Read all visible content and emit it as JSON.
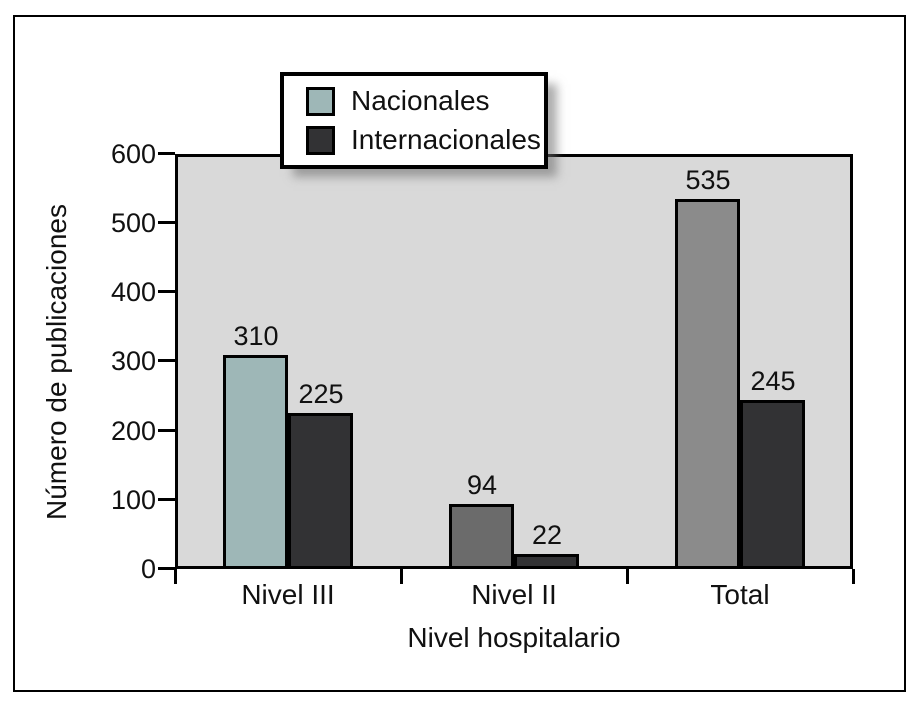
{
  "figure": {
    "background": "#ffffff",
    "frame_color": "#000000"
  },
  "chart_data": {
    "type": "bar",
    "title": "",
    "xlabel": "Nivel hospitalario",
    "ylabel": "Número de publicaciones",
    "categories": [
      "Nivel III",
      "Nivel II",
      "Total"
    ],
    "series": [
      {
        "name": "Nacionales",
        "values": [
          310,
          94,
          535
        ],
        "bar_colors": [
          "#9eb7b7",
          "#6b6b6b",
          "#8b8b8b"
        ],
        "legend_color": "#9eb7b7"
      },
      {
        "name": "Internacionales",
        "values": [
          225,
          22,
          245
        ],
        "bar_colors": [
          "#323234",
          "#323234",
          "#323234"
        ],
        "legend_color": "#323234"
      }
    ],
    "ylim": [
      0,
      600
    ],
    "yticks": [
      0,
      100,
      200,
      300,
      400,
      500,
      600
    ],
    "grid": false,
    "bar_value_labels_shown": true,
    "legend_position": "top-left",
    "colors": {
      "plot_background": "#d9d9d9",
      "axis": "#000000",
      "text": "#111111"
    }
  }
}
